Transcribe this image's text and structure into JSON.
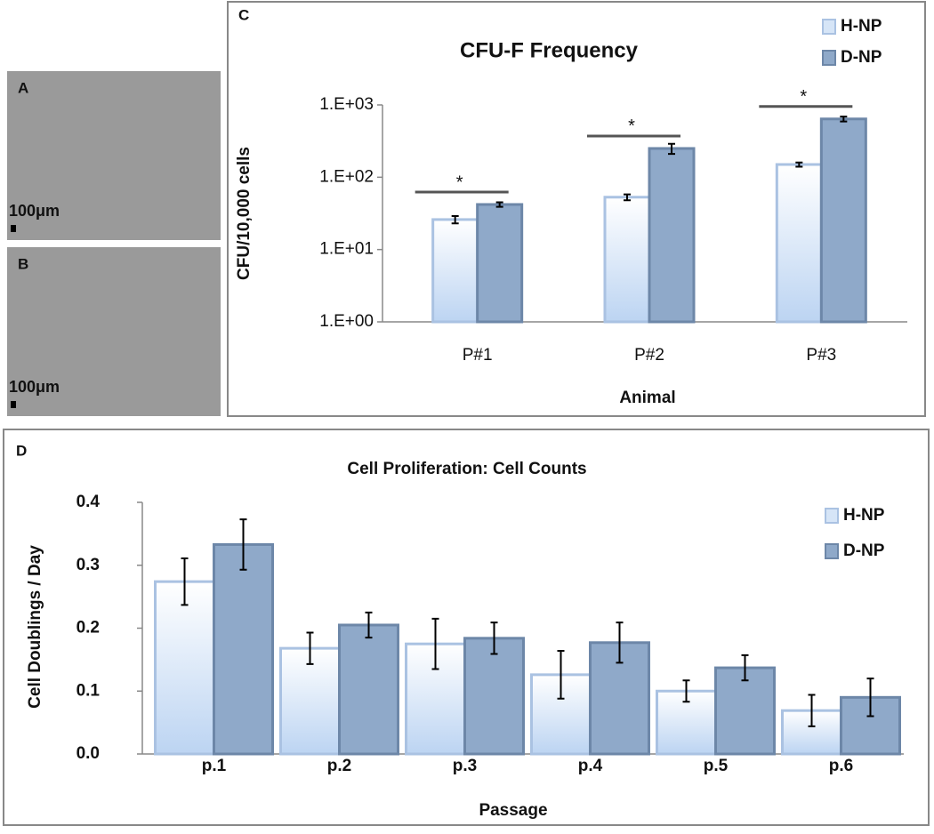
{
  "images": [
    {
      "label": "A",
      "scale": "100μm"
    },
    {
      "label": "B",
      "scale": "100μm"
    }
  ],
  "chart_data": [
    {
      "type": "bar",
      "panel_label": "C",
      "title": "CFU-F Frequency",
      "x_label": "Animal",
      "y_label": "CFU/10,000 cells",
      "categories": [
        "P#1",
        "P#2",
        "P#3"
      ],
      "series": [
        {
          "name": "H-NP",
          "color": "#d6e5f7",
          "values": [
            26,
            53,
            150
          ],
          "errors": [
            3,
            5,
            10
          ]
        },
        {
          "name": "D-NP",
          "color": "#8fa9c9",
          "values": [
            42,
            250,
            640
          ],
          "errors": [
            3,
            40,
            50
          ]
        }
      ],
      "significance": [
        "*",
        "*",
        "*"
      ],
      "log_scale": true,
      "ylim": [
        1,
        1000
      ],
      "yticks": [
        {
          "value": 1,
          "label": "1.E+00"
        },
        {
          "value": 10,
          "label": "1.E+01"
        },
        {
          "value": 100,
          "label": "1.E+02"
        },
        {
          "value": 1000,
          "label": "1.E+03"
        }
      ],
      "grid": false,
      "legend": "top-right"
    },
    {
      "type": "bar",
      "panel_label": "D",
      "title": "Cell Proliferation: Cell Counts",
      "x_label": "Passage",
      "y_label": "Cell Doublings / Day",
      "categories": [
        "p.1",
        "p.2",
        "p.3",
        "p.4",
        "p.5",
        "p.6"
      ],
      "series": [
        {
          "name": "H-NP",
          "color": "#d6e5f7",
          "values": [
            0.274,
            0.168,
            0.175,
            0.126,
            0.1,
            0.069
          ],
          "errors": [
            0.037,
            0.025,
            0.04,
            0.038,
            0.017,
            0.025
          ]
        },
        {
          "name": "D-NP",
          "color": "#8fa9c9",
          "values": [
            0.333,
            0.205,
            0.184,
            0.177,
            0.137,
            0.09
          ],
          "errors": [
            0.04,
            0.02,
            0.025,
            0.032,
            0.02,
            0.03
          ]
        }
      ],
      "log_scale": false,
      "ylim": [
        0,
        0.4
      ],
      "yticks": [
        {
          "value": 0,
          "label": "0.0"
        },
        0.1,
        0.2,
        0.3,
        0.4
      ],
      "grid": false,
      "legend": "top-right"
    }
  ]
}
